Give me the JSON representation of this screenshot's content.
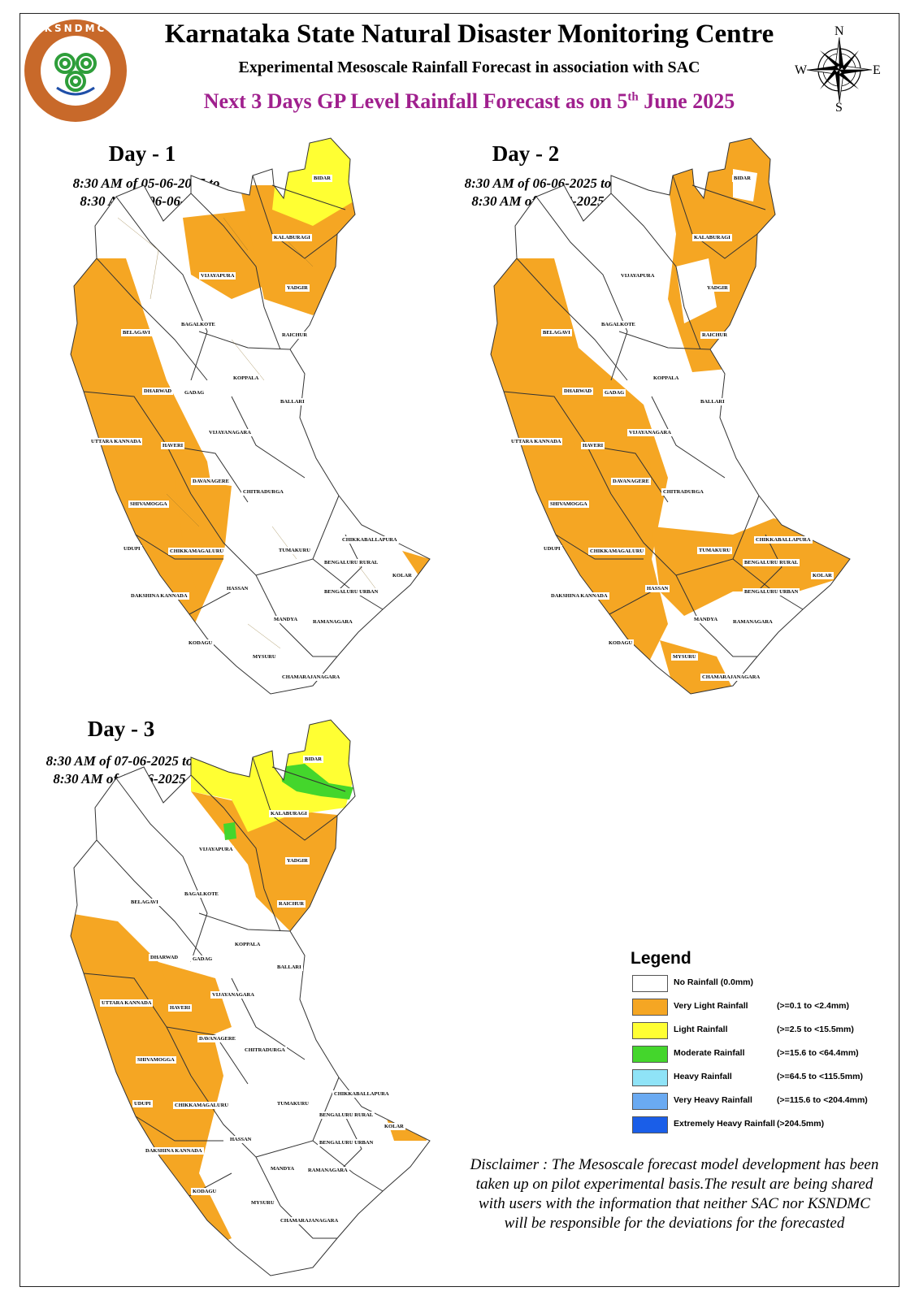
{
  "header": {
    "org_title": "Karnataka State Natural Disaster Monitoring Centre",
    "subtitle": "Experimental Mesoscale Rainfall Forecast in association with SAC",
    "forecast_title_main": "Next 3 Days GP Level Rainfall Forecast  as on 5",
    "forecast_title_sup": "th",
    "forecast_title_end": " June 2025",
    "logo_text": "KSNDMC"
  },
  "compass": {
    "n": "N",
    "s": "S",
    "e": "E",
    "w": "W"
  },
  "days": [
    {
      "title": "Day - 1",
      "range_line1": "8:30 AM of 05-06-2025 to",
      "range_line2": "8:30 AM of 06-06-2025"
    },
    {
      "title": "Day - 2",
      "range_line1": "8:30 AM of 06-06-2025 to",
      "range_line2": "8:30 AM of 07-06-2025"
    },
    {
      "title": "Day - 3",
      "range_line1": "8:30 AM of 07-06-2025 to",
      "range_line2": "8:30 AM of 08-06-2025"
    }
  ],
  "districts": {
    "bidar": "BIDAR",
    "kalaburagi": "KALABURAGI",
    "vijayapura": "VIJAYAPURA",
    "yadgir": "YADGIR",
    "bagalkote": "BAGALKOTE",
    "belagavi": "BELAGAVI",
    "raichur": "RAICHUR",
    "koppala": "KOPPALA",
    "dharwad": "DHARWAD",
    "gadag": "GADAG",
    "ballari": "BALLARI",
    "uttara_kannada": "UTTARA KANNADA",
    "haveri": "HAVERI",
    "vijayanagara": "VIJAYANAGARA",
    "davanagere": "DAVANAGERE",
    "chitradurga": "CHITRADURGA",
    "shivamogga": "SHIVAMOGGA",
    "udupi": "UDUPI",
    "chikkamagaluru": "CHIKKAMAGALURU",
    "tumakuru": "TUMAKURU",
    "chikkaballapura": "CHIKKABALLAPURA",
    "bengaluru_rural": "BENGALURU RURAL",
    "kolar": "KOLAR",
    "bengaluru_urban": "BENGALURU URBAN",
    "hassan": "HASSAN",
    "dakshina_kannada": "DAKSHINA KANNADA",
    "mandya": "MANDYA",
    "ramanagara": "RAMANAGARA",
    "kodagu": "KODAGU",
    "mysuru": "MYSURU",
    "chamarajanagara": "CHAMARAJANAGARA"
  },
  "legend": {
    "title": "Legend",
    "items": [
      {
        "label": "No Rainfall (0.0mm)",
        "range": "",
        "color": "#ffffff"
      },
      {
        "label": "Very Light Rainfall",
        "range": "(>=0.1 to <2.4mm)",
        "color": "#f5a623"
      },
      {
        "label": "Light Rainfall",
        "range": "(>=2.5 to <15.5mm)",
        "color": "#ffff33"
      },
      {
        "label": "Moderate Rainfall",
        "range": "(>=15.6 to <64.4mm)",
        "color": "#44d62c"
      },
      {
        "label": "Heavy Rainfall",
        "range": "(>=64.5 to <115.5mm)",
        "color": "#8fe3f7"
      },
      {
        "label": "Very Heavy Rainfall",
        "range": "(>=115.6 to <204.4mm)",
        "color": "#6aaaf2"
      },
      {
        "label": "Extremely Heavy Rainfall",
        "range": "(>204.5mm)",
        "color": "#1a5ee8"
      }
    ]
  },
  "disclaimer": "Disclaimer : The Mesoscale forecast model development has been taken up on pilot experimental basis.The result are being shared with users with the information that neither SAC nor KSNDMC will be responsible  for the deviations for the forecasted"
}
